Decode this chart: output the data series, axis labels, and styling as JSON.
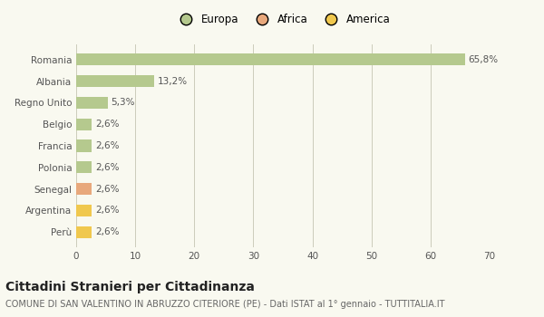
{
  "categories": [
    "Romania",
    "Albania",
    "Regno Unito",
    "Belgio",
    "Francia",
    "Polonia",
    "Senegal",
    "Argentina",
    "Perù"
  ],
  "values": [
    65.8,
    13.2,
    5.3,
    2.6,
    2.6,
    2.6,
    2.6,
    2.6,
    2.6
  ],
  "labels": [
    "65,8%",
    "13,2%",
    "5,3%",
    "2,6%",
    "2,6%",
    "2,6%",
    "2,6%",
    "2,6%",
    "2,6%"
  ],
  "colors": [
    "#b5c98e",
    "#b5c98e",
    "#b5c98e",
    "#b5c98e",
    "#b5c98e",
    "#b5c98e",
    "#e8a87c",
    "#f0c84e",
    "#f0c84e"
  ],
  "legend_labels": [
    "Europa",
    "Africa",
    "America"
  ],
  "legend_colors": [
    "#b5c98e",
    "#e8a87c",
    "#f0c84e"
  ],
  "xlim": [
    0,
    70
  ],
  "xticks": [
    0,
    10,
    20,
    30,
    40,
    50,
    60,
    70
  ],
  "title": "Cittadini Stranieri per Cittadinanza",
  "subtitle": "COMUNE DI SAN VALENTINO IN ABRUZZO CITERIORE (PE) - Dati ISTAT al 1° gennaio - TUTTITALIA.IT",
  "bg_color": "#f9f9f0",
  "bar_height": 0.55,
  "title_fontsize": 10,
  "subtitle_fontsize": 7,
  "label_fontsize": 7.5,
  "tick_fontsize": 7.5,
  "legend_fontsize": 8.5
}
